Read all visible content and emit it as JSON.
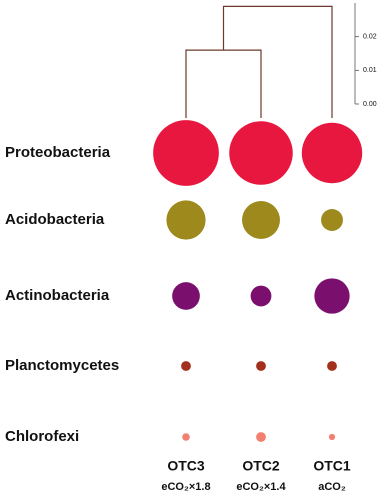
{
  "chart_data": {
    "type": "bubble",
    "categories": [
      "OTC3",
      "OTC2",
      "OTC1"
    ],
    "category_sublabels": [
      "eCO₂×1.8",
      "eCO₂×1.4",
      "aCO₂"
    ],
    "series": [
      {
        "name": "Proteobacteria",
        "color": "#e8173f",
        "values": [
          45,
          42,
          38
        ]
      },
      {
        "name": "Acidobacteria",
        "color": "#9e8a1c",
        "values": [
          16,
          15,
          5
        ]
      },
      {
        "name": "Actinobacteria",
        "color": "#7a0f6e",
        "values": [
          8,
          4.5,
          13
        ]
      },
      {
        "name": "Planctomycetes",
        "color": "#a3301c",
        "values": [
          1,
          1,
          1
        ]
      },
      {
        "name": "Chlorofexi",
        "color": "#f27f6f",
        "values": [
          0.6,
          1,
          0.4
        ]
      }
    ],
    "dendrogram": {
      "ylim": [
        0,
        0.03
      ],
      "yticks": [
        {
          "value": 0,
          "label": "0.00"
        },
        {
          "value": 0.01,
          "label": "0.01"
        },
        {
          "value": 0.02,
          "label": "0.02"
        }
      ],
      "merge_heights": [
        0.016,
        0.029
      ],
      "color": "#6b3a2a"
    }
  }
}
